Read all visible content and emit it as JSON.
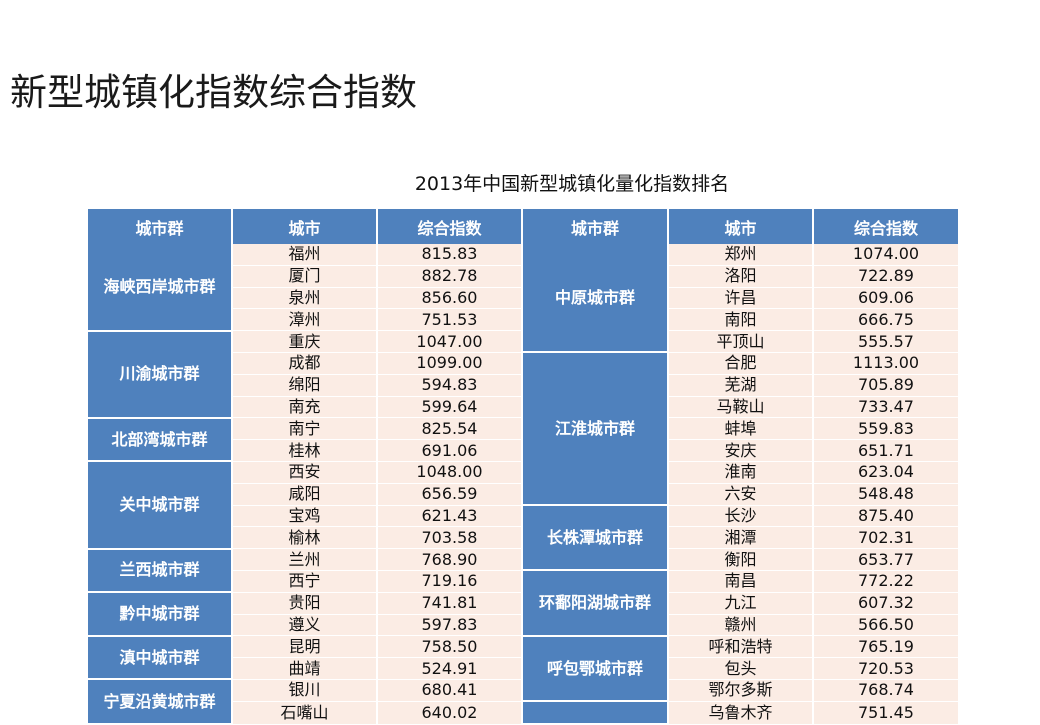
{
  "page": {
    "title": "新型城镇化指数综合指数",
    "table_title": "2013年中国新型城镇化量化指数排名"
  },
  "table": {
    "headers": [
      "城市群",
      "城市",
      "综合指数",
      "城市群",
      "城市",
      "综合指数"
    ],
    "left_groups": [
      {
        "name": "海峡西岸城市群",
        "rows": [
          [
            "福州",
            "815.83"
          ],
          [
            "厦门",
            "882.78"
          ],
          [
            "泉州",
            "856.60"
          ],
          [
            "漳州",
            "751.53"
          ]
        ]
      },
      {
        "name": "川渝城市群",
        "rows": [
          [
            "重庆",
            "1047.00"
          ],
          [
            "成都",
            "1099.00"
          ],
          [
            "绵阳",
            "594.83"
          ],
          [
            "南充",
            "599.64"
          ]
        ]
      },
      {
        "name": "北部湾城市群",
        "rows": [
          [
            "南宁",
            "825.54"
          ],
          [
            "桂林",
            "691.06"
          ]
        ]
      },
      {
        "name": "关中城市群",
        "rows": [
          [
            "西安",
            "1048.00"
          ],
          [
            "咸阳",
            "656.59"
          ],
          [
            "宝鸡",
            "621.43"
          ],
          [
            "榆林",
            "703.58"
          ]
        ]
      },
      {
        "name": "兰西城市群",
        "rows": [
          [
            "兰州",
            "768.90"
          ],
          [
            "西宁",
            "719.16"
          ]
        ]
      },
      {
        "name": "黔中城市群",
        "rows": [
          [
            "贵阳",
            "741.81"
          ],
          [
            "遵义",
            "597.83"
          ]
        ]
      },
      {
        "name": "滇中城市群",
        "rows": [
          [
            "昆明",
            "758.50"
          ],
          [
            "曲靖",
            "524.91"
          ]
        ]
      },
      {
        "name": "宁夏沿黄城市群",
        "rows": [
          [
            "银川",
            "680.41"
          ],
          [
            "石嘴山",
            "640.02"
          ]
        ]
      }
    ],
    "right_groups": [
      {
        "name": "中原城市群",
        "rows": [
          [
            "郑州",
            "1074.00"
          ],
          [
            "洛阳",
            "722.89"
          ],
          [
            "许昌",
            "609.06"
          ],
          [
            "南阳",
            "666.75"
          ],
          [
            "平顶山",
            "555.57"
          ]
        ]
      },
      {
        "name": "江淮城市群",
        "rows": [
          [
            "合肥",
            "1113.00"
          ],
          [
            "芜湖",
            "705.89"
          ],
          [
            "马鞍山",
            "733.47"
          ],
          [
            "蚌埠",
            "559.83"
          ],
          [
            "安庆",
            "651.71"
          ],
          [
            "淮南",
            "623.04"
          ],
          [
            "六安",
            "548.48"
          ]
        ]
      },
      {
        "name": "长株潭城市群",
        "rows": [
          [
            "长沙",
            "875.40"
          ],
          [
            "湘潭",
            "702.31"
          ],
          [
            "衡阳",
            "653.77"
          ]
        ]
      },
      {
        "name": "环鄱阳湖城市群",
        "rows": [
          [
            "南昌",
            "772.22"
          ],
          [
            "九江",
            "607.32"
          ],
          [
            "赣州",
            "566.50"
          ]
        ]
      },
      {
        "name": "呼包鄂城市群",
        "rows": [
          [
            "呼和浩特",
            "765.19"
          ],
          [
            "包头",
            "720.53"
          ],
          [
            "鄂尔多斯",
            "768.74"
          ]
        ]
      },
      {
        "name": "",
        "rows": [
          [
            "乌鲁木齐",
            "751.45"
          ]
        ]
      }
    ]
  },
  "colors": {
    "header_bg": "#4f81bd",
    "cell_bg": "#fbece4",
    "text": "#111111"
  }
}
